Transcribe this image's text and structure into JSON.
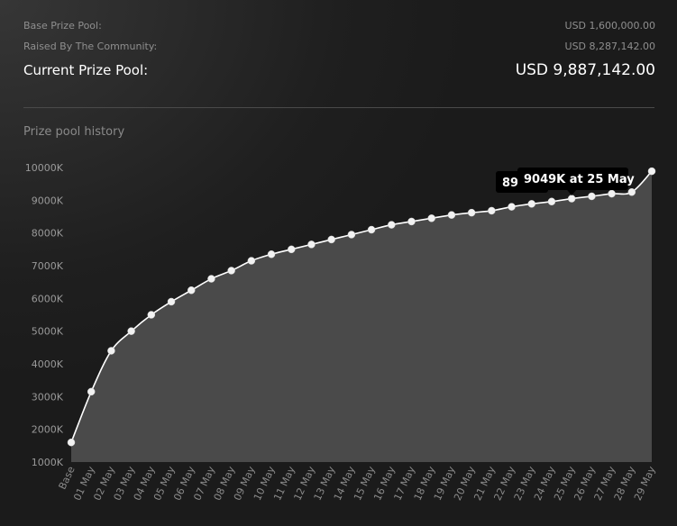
{
  "summary": {
    "base_label": "Base Prize Pool:",
    "base_value": "USD 1,600,000.00",
    "raised_label": "Raised By The Community:",
    "raised_value": "USD 8,287,142.00",
    "current_label": "Current Prize Pool:",
    "current_value": "USD 9,887,142.00"
  },
  "history_title": "Prize pool history",
  "tooltip": {
    "text": "9049K at 25 May",
    "underlying_text": "89"
  },
  "colors": {
    "area_fill": "#4a4a4a",
    "line": "#ffffff",
    "point": "#f2f2f2"
  },
  "chart_data": {
    "type": "area",
    "title": "",
    "xlabel": "",
    "ylabel": "",
    "ylim": [
      1000,
      10000
    ],
    "yticks": [
      1000,
      2000,
      3000,
      4000,
      5000,
      6000,
      7000,
      8000,
      9000,
      10000
    ],
    "ytick_labels": [
      "1000K",
      "2000K",
      "3000K",
      "4000K",
      "5000K",
      "6000K",
      "7000K",
      "8000K",
      "9000K",
      "10000K"
    ],
    "grid": false,
    "categories": [
      "Base",
      "01 May",
      "02 May",
      "03 May",
      "04 May",
      "05 May",
      "06 May",
      "07 May",
      "08 May",
      "09 May",
      "10 May",
      "11 May",
      "12 May",
      "13 May",
      "14 May",
      "15 May",
      "16 May",
      "17 May",
      "18 May",
      "19 May",
      "20 May",
      "21 May",
      "22 May",
      "23 May",
      "24 May",
      "25 May",
      "26 May",
      "27 May",
      "28 May",
      "29 May"
    ],
    "series": [
      {
        "values": [
          1600,
          3150,
          4400,
          5000,
          5500,
          5900,
          6250,
          6600,
          6850,
          7150,
          7350,
          7500,
          7650,
          7800,
          7950,
          8100,
          8250,
          8350,
          8450,
          8550,
          8620,
          8680,
          8800,
          8890,
          8960,
          9049,
          9120,
          9200,
          9250,
          9887
        ]
      }
    ],
    "highlight": {
      "category": "25 May",
      "value": 9049
    }
  }
}
